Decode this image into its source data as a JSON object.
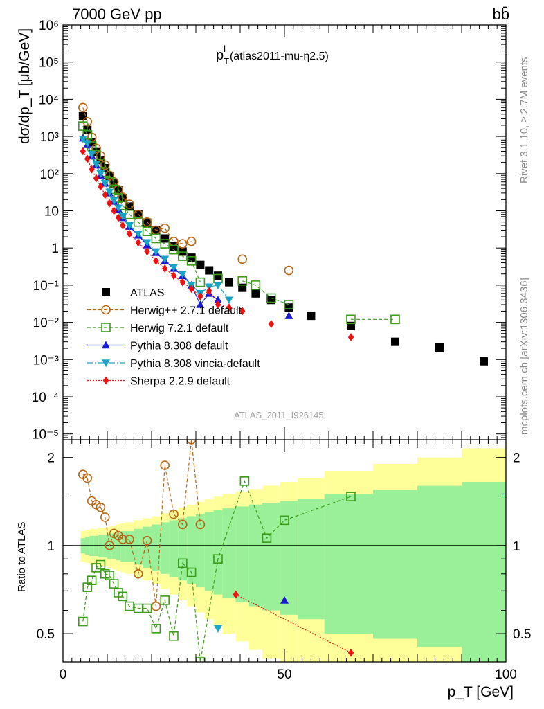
{
  "header": {
    "energy_label": "7000 GeV pp",
    "process_label": "bb̄",
    "plot_title_main": "p",
    "plot_title_sub": "T",
    "plot_title_sup": "l",
    "plot_title_rest": "(atlas2011-mu-η2.5)",
    "side_label_top": "Rivet 3.1.10, ≥ 2.7M events",
    "side_label_bottom": "mcplots.cern.ch [arXiv:1306.3436]",
    "analysis_watermark": "ATLAS_2011_I926145"
  },
  "chart_data": [
    {
      "type": "scatter",
      "panel": "main",
      "ylabel": "dσ/dp_T [μb/GeV]",
      "yscale": "log",
      "xlim": [
        0,
        100
      ],
      "ylim": [
        7e-06,
        1000000.0
      ],
      "legend_position": "center-left",
      "y_tick_labels": [
        "10⁻⁵",
        "10⁻⁴",
        "10⁻³",
        "10⁻²",
        "10⁻¹",
        "1",
        "10",
        "10²",
        "10³",
        "10⁴",
        "10⁵",
        "10⁶"
      ],
      "series": [
        {
          "name": "ATLAS",
          "color": "#000000",
          "marker": "square-filled",
          "x": [
            4.5,
            5.5,
            6.5,
            7.5,
            8.5,
            9.5,
            10.5,
            11.5,
            12.5,
            13.5,
            15,
            17,
            19,
            21,
            23,
            25,
            27,
            29,
            31,
            33,
            35,
            37.5,
            40.5,
            43.5,
            47,
            51,
            56,
            65,
            75,
            85,
            95
          ],
          "y": [
            3500,
            1500,
            700,
            380,
            230,
            140,
            85,
            55,
            35,
            22,
            13,
            8,
            4.8,
            3,
            1.8,
            1.1,
            0.8,
            0.55,
            0.35,
            0.25,
            0.18,
            0.12,
            0.085,
            0.06,
            0.04,
            0.025,
            0.015,
            0.008,
            0.003,
            0.0021,
            0.0009
          ]
        },
        {
          "name": "Herwig++ 2.7.1 default",
          "color": "#b86514",
          "marker": "circle-open",
          "x": [
            4.5,
            5.5,
            6.5,
            7.5,
            8.5,
            9.5,
            10.5,
            11.5,
            12.5,
            13.5,
            15,
            17,
            19,
            21,
            23,
            25,
            27,
            29,
            31,
            33,
            35,
            37.5,
            40.5,
            43.5,
            47,
            51,
            56,
            65,
            75,
            85,
            95
          ],
          "y": [
            6000,
            2500,
            950,
            480,
            300,
            170,
            90,
            60,
            37,
            23,
            15,
            8,
            5,
            3,
            3.4,
            1.5,
            1.3,
            1.5,
            null,
            null,
            null,
            null,
            0.5,
            null,
            null,
            0.25,
            null,
            null,
            null,
            null,
            null
          ]
        },
        {
          "name": "Herwig 7.2.1 default",
          "color": "#3b9c17",
          "marker": "square-open",
          "x": [
            4.5,
            5.5,
            6.5,
            7.5,
            8.5,
            9.5,
            10.5,
            11.5,
            12.5,
            13.5,
            15,
            17,
            19,
            21,
            23,
            25,
            27,
            29,
            31,
            33,
            35,
            37.5,
            40.5,
            43.5,
            47,
            51,
            56,
            65,
            75,
            85,
            95
          ],
          "y": [
            1900,
            1100,
            550,
            320,
            190,
            110,
            60,
            38,
            22,
            14,
            8,
            5,
            2.8,
            1.8,
            1.3,
            0.9,
            0.6,
            0.45,
            0.12,
            null,
            0.15,
            null,
            0.13,
            0.1,
            0.045,
            0.03,
            null,
            0.012,
            0.012,
            null,
            null
          ]
        },
        {
          "name": "Pythia 8.308 default",
          "color": "#1a1ad6",
          "marker": "triangle-up",
          "x": [
            4.5,
            5.5,
            6.5,
            7.5,
            8.5,
            9.5,
            10.5,
            11.5,
            12.5,
            13.5,
            15,
            17,
            19,
            21,
            23,
            25,
            27,
            29,
            31,
            33,
            35,
            37.5,
            40.5,
            43.5,
            47,
            51,
            56,
            65,
            75,
            85,
            95
          ],
          "y": [
            900,
            600,
            300,
            170,
            90,
            55,
            30,
            18,
            11,
            6.5,
            3.8,
            2.2,
            1.2,
            0.75,
            0.45,
            0.28,
            0.18,
            0.1,
            0.03,
            0.06,
            0.04,
            null,
            null,
            null,
            null,
            0.015,
            null,
            null,
            null,
            null,
            null
          ]
        },
        {
          "name": "Pythia 8.308 vincia-default",
          "color": "#19a3c4",
          "marker": "triangle-down",
          "x": [
            4.5,
            5.5,
            6.5,
            7.5,
            8.5,
            9.5,
            10.5,
            11.5,
            12.5,
            13.5,
            15,
            17,
            19,
            21,
            23,
            25,
            27,
            29,
            31,
            33,
            35,
            37.5,
            40.5,
            43.5,
            47,
            51,
            56,
            65,
            75,
            85,
            95
          ],
          "y": [
            850,
            650,
            330,
            180,
            100,
            55,
            32,
            19,
            12,
            7,
            4,
            2.4,
            1.4,
            0.8,
            0.5,
            0.3,
            0.2,
            0.1,
            0.06,
            0.09,
            0.1,
            0.04,
            null,
            null,
            null,
            null,
            null,
            null,
            null,
            null,
            null
          ]
        },
        {
          "name": "Sherpa 2.2.9 default",
          "color": "#ee1111",
          "marker": "diamond",
          "x": [
            4.5,
            5.5,
            6.5,
            7.5,
            8.5,
            9.5,
            10.5,
            11.5,
            12.5,
            13.5,
            15,
            17,
            19,
            21,
            23,
            25,
            27,
            29,
            31,
            33,
            35,
            37.5,
            40.5,
            43.5,
            47,
            51,
            56,
            65,
            75,
            85,
            95
          ],
          "y": [
            400,
            250,
            130,
            75,
            45,
            27,
            16,
            10,
            6.5,
            4,
            2.4,
            1.4,
            0.8,
            0.45,
            0.28,
            0.18,
            0.12,
            0.08,
            0.05,
            0.07,
            0.03,
            0.025,
            0.02,
            null,
            0.009,
            null,
            null,
            0.004,
            null,
            null,
            null
          ]
        }
      ]
    },
    {
      "type": "scatter",
      "panel": "ratio",
      "xlabel": "p_T [GeV]",
      "ylabel": "Ratio to ATLAS",
      "xlim": [
        0,
        100
      ],
      "ylim": [
        0.4,
        2.3
      ],
      "x_tick_labels": [
        "0",
        "50",
        "100"
      ],
      "y_tick_labels": [
        "0.5",
        "1",
        "2"
      ],
      "reference_line": 1,
      "uncertainty_bands": {
        "x_edges": [
          4,
          5,
          6,
          7,
          8,
          9,
          10,
          11,
          12,
          13,
          14,
          16,
          18,
          20,
          22,
          24,
          26,
          28,
          30,
          32,
          34,
          36,
          39,
          42,
          45,
          49,
          53,
          59,
          70,
          80,
          90,
          100
        ],
        "inner_green": [
          [
            0.94,
            1.06
          ],
          [
            0.93,
            1.07
          ],
          [
            0.92,
            1.08
          ],
          [
            0.92,
            1.08
          ],
          [
            0.91,
            1.09
          ],
          [
            0.91,
            1.09
          ],
          [
            0.9,
            1.1
          ],
          [
            0.9,
            1.1
          ],
          [
            0.89,
            1.11
          ],
          [
            0.88,
            1.12
          ],
          [
            0.88,
            1.12
          ],
          [
            0.86,
            1.14
          ],
          [
            0.84,
            1.16
          ],
          [
            0.82,
            1.18
          ],
          [
            0.8,
            1.2
          ],
          [
            0.78,
            1.22
          ],
          [
            0.76,
            1.24
          ],
          [
            0.74,
            1.26
          ],
          [
            0.72,
            1.28
          ],
          [
            0.7,
            1.3
          ],
          [
            0.68,
            1.32
          ],
          [
            0.66,
            1.34
          ],
          [
            0.64,
            1.36
          ],
          [
            0.62,
            1.38
          ],
          [
            0.6,
            1.4
          ],
          [
            0.58,
            1.42
          ],
          [
            0.56,
            1.44
          ],
          [
            0.5,
            1.5
          ],
          [
            0.48,
            1.55
          ],
          [
            0.45,
            1.6
          ],
          [
            0.4,
            1.65
          ]
        ],
        "outer_yellow": [
          [
            0.88,
            1.12
          ],
          [
            0.87,
            1.13
          ],
          [
            0.86,
            1.14
          ],
          [
            0.86,
            1.14
          ],
          [
            0.85,
            1.15
          ],
          [
            0.85,
            1.15
          ],
          [
            0.84,
            1.16
          ],
          [
            0.83,
            1.17
          ],
          [
            0.82,
            1.18
          ],
          [
            0.81,
            1.19
          ],
          [
            0.8,
            1.2
          ],
          [
            0.78,
            1.22
          ],
          [
            0.76,
            1.24
          ],
          [
            0.74,
            1.26
          ],
          [
            0.71,
            1.29
          ],
          [
            0.68,
            1.32
          ],
          [
            0.65,
            1.35
          ],
          [
            0.62,
            1.38
          ],
          [
            0.59,
            1.41
          ],
          [
            0.56,
            1.44
          ],
          [
            0.53,
            1.47
          ],
          [
            0.5,
            1.5
          ],
          [
            0.47,
            1.53
          ],
          [
            0.44,
            1.56
          ],
          [
            0.41,
            1.6
          ],
          [
            0.4,
            1.65
          ],
          [
            0.4,
            1.7
          ],
          [
            0.4,
            1.8
          ],
          [
            0.4,
            1.9
          ],
          [
            0.4,
            2.0
          ],
          [
            0.4,
            2.15
          ]
        ]
      },
      "series": [
        {
          "name": "Herwig++ 2.7.1 default",
          "color": "#b86514",
          "marker": "circle-open",
          "x": [
            4.5,
            5.5,
            6.5,
            7.5,
            8.5,
            9.5,
            10.5,
            11.5,
            12.5,
            13.5,
            15,
            17,
            19,
            21,
            23,
            25,
            27,
            29,
            31
          ],
          "y": [
            1.75,
            1.7,
            1.42,
            1.38,
            1.35,
            1.25,
            1.0,
            1.1,
            1.08,
            1.05,
            1.05,
            0.8,
            1.04,
            0.62,
            1.88,
            1.28,
            1.18,
            2.3,
            1.18
          ]
        },
        {
          "name": "Herwig 7.2.1 default",
          "color": "#3b9c17",
          "marker": "square-open",
          "x": [
            4.5,
            5.5,
            6.5,
            7.5,
            8.5,
            9.5,
            10.5,
            11.5,
            12.5,
            13.5,
            15,
            17,
            19,
            21,
            23,
            25,
            27,
            29,
            31,
            35,
            41,
            46,
            50,
            65
          ],
          "y": [
            0.55,
            0.72,
            0.76,
            0.84,
            0.86,
            0.8,
            0.79,
            0.74,
            0.69,
            0.67,
            0.62,
            0.61,
            0.61,
            0.52,
            0.65,
            0.49,
            0.87,
            0.81,
            0.4,
            0.9,
            1.66,
            1.06,
            1.22,
            1.47
          ]
        },
        {
          "name": "Pythia 8.308 vincia-default",
          "color": "#19a3c4",
          "marker": "triangle-down",
          "x": [
            35
          ],
          "y": [
            0.52
          ]
        },
        {
          "name": "Pythia 8.308 default",
          "color": "#1a1ad6",
          "marker": "triangle-up",
          "x": [
            50
          ],
          "y": [
            0.65
          ]
        },
        {
          "name": "Sherpa 2.2.9 default",
          "color": "#ee1111",
          "marker": "diamond",
          "x": [
            39,
            65
          ],
          "y": [
            0.68,
            0.43
          ]
        }
      ]
    }
  ]
}
